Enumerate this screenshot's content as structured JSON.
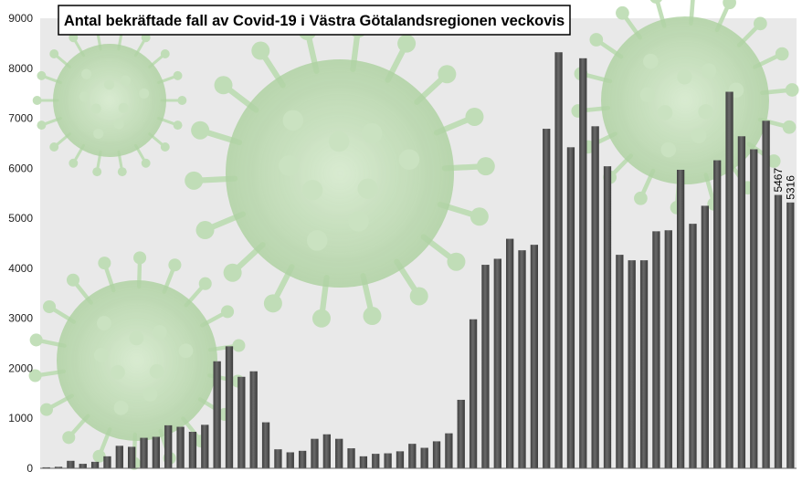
{
  "chart_data": {
    "type": "bar",
    "title": "Antal bekräftade fall av Covid-19 i Västra Götalandsregionen veckovis",
    "xlabel": "",
    "ylabel": "",
    "ylim": [
      0,
      9000
    ],
    "yticks": [
      0,
      1000,
      2000,
      3000,
      4000,
      5000,
      6000,
      7000,
      8000,
      9000
    ],
    "grid": false,
    "legend": "none",
    "values": [
      20,
      30,
      150,
      90,
      130,
      240,
      450,
      430,
      610,
      630,
      860,
      830,
      730,
      870,
      2140,
      2440,
      1830,
      1940,
      920,
      380,
      320,
      350,
      590,
      680,
      590,
      400,
      240,
      290,
      300,
      340,
      490,
      410,
      540,
      700,
      1370,
      2980,
      4070,
      4190,
      4590,
      4360,
      4470,
      6790,
      8320,
      6420,
      8200,
      6840,
      6040,
      4270,
      4160,
      4160,
      4740,
      4760,
      5970,
      4890,
      5250,
      6160,
      7530,
      6640,
      6380,
      6950,
      5467,
      5316
    ],
    "data_labels": [
      {
        "index": 60,
        "text": "5467"
      },
      {
        "index": 61,
        "text": "5316"
      }
    ],
    "colors": {
      "bar": "#505050",
      "plot_background": "#e9e9e9",
      "virus": "#bcdcb2",
      "axis_text": "#222222"
    }
  }
}
